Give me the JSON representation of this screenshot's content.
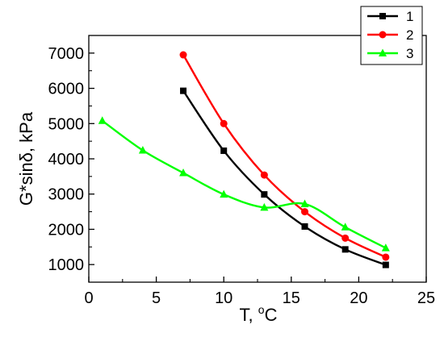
{
  "chart_data": {
    "type": "line",
    "xlabel": "T, °C",
    "xlabel_main": "T, ",
    "xlabel_sup": "o",
    "xlabel_unit": "C",
    "ylabel": "G*sinδ, kPa",
    "xlim": [
      0,
      25
    ],
    "ylim": [
      500,
      7500
    ],
    "x_ticks": [
      0,
      5,
      10,
      15,
      20,
      25
    ],
    "y_ticks": [
      1000,
      2000,
      3000,
      4000,
      5000,
      6000,
      7000
    ],
    "grid": false,
    "legend_position": "top-right",
    "series": [
      {
        "name": "1",
        "color": "#000000",
        "marker": "square",
        "x": [
          7,
          10,
          13,
          16,
          19,
          22
        ],
        "y": [
          5930,
          4230,
          2990,
          2080,
          1430,
          990
        ]
      },
      {
        "name": "2",
        "color": "#ff0000",
        "marker": "circle",
        "x": [
          7,
          10,
          13,
          16,
          19,
          22
        ],
        "y": [
          6950,
          5000,
          3540,
          2500,
          1750,
          1210
        ]
      },
      {
        "name": "3",
        "color": "#00ff00",
        "marker": "triangle",
        "x": [
          1,
          4,
          7,
          10,
          13,
          16,
          19,
          22
        ],
        "y": [
          5080,
          4240,
          3600,
          2990,
          2620,
          2720,
          2060,
          1470
        ]
      }
    ]
  }
}
